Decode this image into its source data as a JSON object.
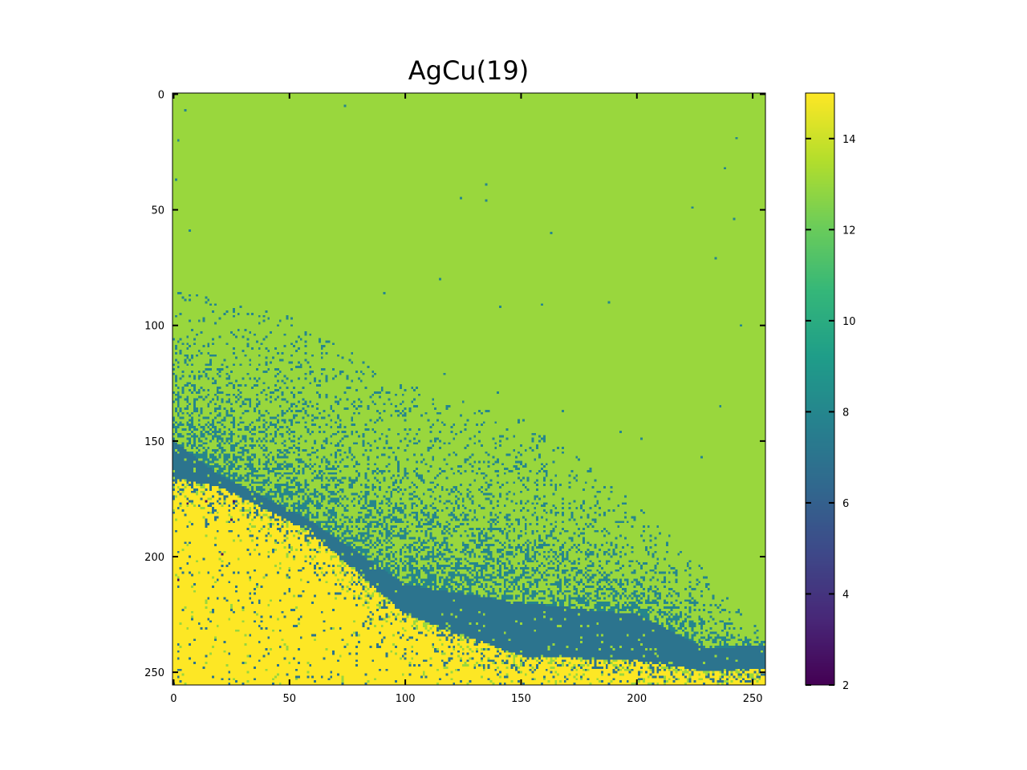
{
  "chart_data": [
    {
      "type": "heatmap",
      "title": "AgCu(19)",
      "xlabel": "",
      "ylabel": "",
      "grid_size": [
        256,
        256
      ],
      "xlim": [
        0,
        255
      ],
      "ylim": [
        255,
        0
      ],
      "x_ticks": [
        "0",
        "50",
        "100",
        "150",
        "200",
        "250"
      ],
      "y_ticks": [
        "0",
        "50",
        "100",
        "150",
        "200",
        "250"
      ],
      "colormap": "viridis",
      "value_range": [
        2,
        15
      ],
      "regions": [
        {
          "description": "upper phase",
          "value": 13
        },
        {
          "description": "scattered interface particles",
          "value": 8
        },
        {
          "description": "dense interface band",
          "value": 7
        },
        {
          "description": "lower phase",
          "value": 15
        }
      ],
      "boundaries": {
        "band_top_x": [
          0,
          20,
          60,
          100,
          150,
          200,
          220,
          230,
          256
        ],
        "band_top_y": [
          150,
          165,
          185,
          212,
          220,
          225,
          235,
          240,
          238
        ],
        "band_bottom_x": [
          0,
          20,
          60,
          100,
          150,
          200,
          220,
          230,
          256
        ],
        "band_bottom_y": [
          166,
          170,
          190,
          225,
          243,
          245,
          248,
          250,
          248
        ],
        "scatter_top_x": [
          0,
          50,
          100,
          150,
          200,
          256
        ],
        "scatter_top_y": [
          85,
          95,
          125,
          140,
          175,
          235
        ]
      }
    },
    {
      "type": "colorbar",
      "range": [
        2,
        15
      ],
      "ticks": [
        "2",
        "4",
        "6",
        "8",
        "10",
        "12",
        "14"
      ],
      "tick_values": [
        2,
        4,
        6,
        8,
        10,
        12,
        14
      ]
    }
  ],
  "colors": {
    "upper_phase": "#97d83f",
    "interface": "#2a788e",
    "lower_phase": "#fde725"
  }
}
